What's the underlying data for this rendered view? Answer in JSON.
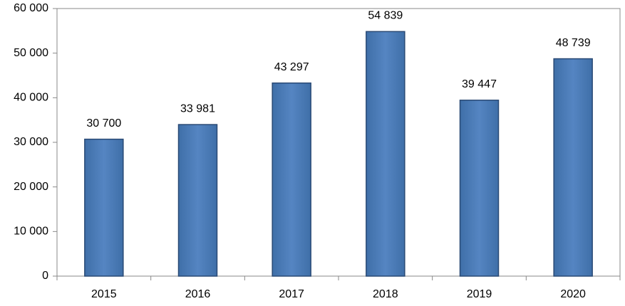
{
  "chart_data": {
    "type": "bar",
    "categories": [
      "2015",
      "2016",
      "2017",
      "2018",
      "2019",
      "2020"
    ],
    "values": [
      30700,
      33981,
      43297,
      54839,
      39447,
      48739
    ],
    "value_labels": [
      "30 700",
      "33 981",
      "43 297",
      "54 839",
      "39 447",
      "48 739"
    ],
    "color": "#4f81bd",
    "ylim": [
      0,
      60000
    ],
    "yticks": [
      0,
      {
        "value": 10000,
        "label": "10 000"
      },
      {
        "value": 20000,
        "label": "20 000"
      },
      {
        "value": 30000,
        "label": "30 000"
      },
      {
        "value": 40000,
        "label": "40 000"
      },
      {
        "value": 50000,
        "label": "50 000"
      },
      {
        "value": 60000,
        "label": "60 000"
      }
    ],
    "grid": false
  }
}
